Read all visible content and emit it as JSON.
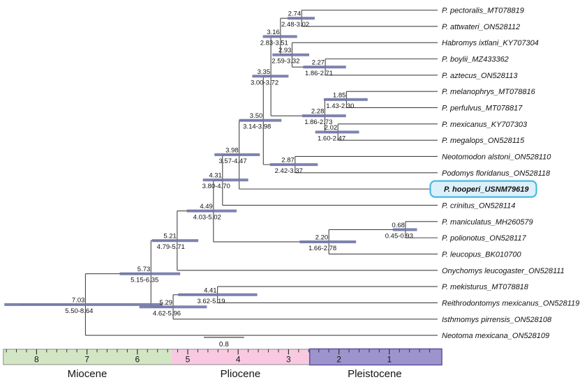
{
  "figure": {
    "description": "Time-calibrated phylogenetic tree of Peromyscus and relatives with node ages (Ma), 95% HPD bars, geologic timescale",
    "highlighted_taxon": "P. hooperi_USNM79619"
  },
  "colors": {
    "branch": "#454549",
    "ci_bar": "#7378a8",
    "label_text": "#121212",
    "node_text": "#111111",
    "highlight_fill": "#dcf0fa",
    "highlight_stroke": "#49b9e0",
    "tick": "#2f2f2f",
    "bar_outline": "#8a8a8a"
  },
  "chart_data": {
    "type": "phylogenetic-tree",
    "time_axis": {
      "unit": "Ma",
      "root_max": 8.66,
      "present": 0
    },
    "scale_bar": {
      "label": "0.8",
      "length_ma": 0.8
    },
    "timescale": {
      "epochs": [
        {
          "name": "Miocene",
          "from_ma": 8.66,
          "to_ma": 5.33,
          "fill": "#d3e6c4",
          "stroke": "#8a8a8a"
        },
        {
          "name": "Pliocene",
          "from_ma": 5.33,
          "to_ma": 2.58,
          "fill": "#f9c9e1",
          "stroke": "#8a8a8a"
        },
        {
          "name": "Pleistocene",
          "from_ma": 2.58,
          "to_ma": 0.0,
          "fill": "#9e94cd",
          "stroke": "#6257a5"
        }
      ],
      "major_ticks": [
        "8",
        "7",
        "6",
        "5",
        "4",
        "3",
        "2",
        "1"
      ],
      "minor_tick_step_ma": 0.2
    },
    "tree": {
      "age": "7.03",
      "ci": "5.50-8.64",
      "children": [
        {
          "age": "5.73",
          "ci": "5.15-6.35",
          "children": [
            {
              "age": "5.21",
              "ci": "4.79-5.71",
              "children": [
                {
                  "age": "4.49",
                  "ci": "4.03-5.02",
                  "children": [
                    {
                      "age": "4.31",
                      "ci": "3.80-4.70",
                      "children": [
                        {
                          "age": "3.98",
                          "ci": "3.57-4.47",
                          "children": [
                            {
                              "age": "3.50",
                              "ci": "3.14-3.98",
                              "children": [
                                {
                                  "age": "3.35",
                                  "ci": "3.00-3.72",
                                  "children": [
                                    {
                                      "age": "3.16",
                                      "ci": "2.83-3.51",
                                      "children": [
                                        {
                                          "age": "2.74",
                                          "ci": "2.48-3.02",
                                          "children": [
                                            {
                                              "leaf": "P. pectoralis_MT078819"
                                            },
                                            {
                                              "leaf": "P. attwateri_ON528112"
                                            }
                                          ]
                                        },
                                        {
                                          "age": "2.93",
                                          "ci": "2.59-3.32",
                                          "children": [
                                            {
                                              "leaf": "Habromys ixtlani_KY707304"
                                            },
                                            {
                                              "age": "2.27",
                                              "ci": "1.86-2.71",
                                              "children": [
                                                {
                                                  "leaf": "P. boylii_MZ433362"
                                                },
                                                {
                                                  "leaf": "P. aztecus_ON528113"
                                                }
                                              ]
                                            }
                                          ]
                                        }
                                      ]
                                    },
                                    {
                                      "age": "2.28",
                                      "ci": "1.86-2.73",
                                      "children": [
                                        {
                                          "age": "1.85",
                                          "ci": "1.43-2.30",
                                          "children": [
                                            {
                                              "leaf": "P. melanophrys_MT078816"
                                            },
                                            {
                                              "leaf": "P. perfulvus_MT078817"
                                            }
                                          ]
                                        },
                                        {
                                          "age": "2.02",
                                          "ci": "1.60-2.47",
                                          "children": [
                                            {
                                              "leaf": "P. mexicanus_KY707303"
                                            },
                                            {
                                              "leaf": "P. megalops_ON528115"
                                            }
                                          ]
                                        }
                                      ]
                                    }
                                  ]
                                },
                                {
                                  "age": "2.87",
                                  "ci": "2.42-3.37",
                                  "children": [
                                    {
                                      "leaf": "Neotomodon alstoni_ON528110"
                                    },
                                    {
                                      "leaf": "Podomys floridanus_ON528118"
                                    }
                                  ]
                                }
                              ]
                            },
                            {
                              "leaf": "P. hooperi_USNM79619",
                              "highlight": true
                            }
                          ]
                        },
                        {
                          "leaf": "P. crinitus_ON528114"
                        }
                      ]
                    },
                    {
                      "age": "2.20",
                      "ci": "1.66-2.78",
                      "children": [
                        {
                          "age": "0.68",
                          "ci": "0.45-0.93",
                          "children": [
                            {
                              "leaf": "P. maniculatus_MH260579"
                            },
                            {
                              "leaf": "P. polionotus_ON528117"
                            }
                          ]
                        },
                        {
                          "leaf": "P. leucopus_BK010700"
                        }
                      ]
                    }
                  ]
                },
                {
                  "leaf": "Onychomys leucogaster_ON528111"
                }
              ]
            },
            {
              "age": "5.29",
              "ci": "4.62-5.96",
              "children": [
                {
                  "age": "4.41",
                  "ci": "3.62-5.19",
                  "children": [
                    {
                      "leaf": "P. mekisturus_MT078818"
                    },
                    {
                      "leaf": "Reithrodontomys mexicanus_ON528119"
                    }
                  ]
                },
                {
                  "leaf": "Isthmomys pirrensis_ON528108"
                }
              ]
            }
          ]
        },
        {
          "leaf": "Neotoma mexicana_ON528109"
        }
      ]
    }
  }
}
